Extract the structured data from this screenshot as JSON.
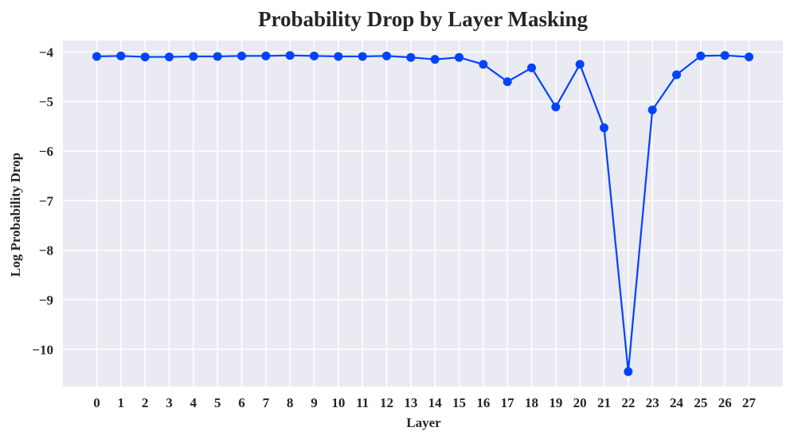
{
  "chart_data": {
    "type": "line",
    "title": "Probability Drop by Layer Masking",
    "xlabel": "Layer",
    "ylabel": "Log Probability Drop",
    "x": [
      0,
      1,
      2,
      3,
      4,
      5,
      6,
      7,
      8,
      9,
      10,
      11,
      12,
      13,
      14,
      15,
      16,
      17,
      18,
      19,
      20,
      21,
      22,
      23,
      24,
      25,
      26,
      27
    ],
    "series": [
      {
        "values": [
          -4.09,
          -4.08,
          -4.1,
          -4.1,
          -4.09,
          -4.09,
          -4.08,
          -4.08,
          -4.07,
          -4.08,
          -4.09,
          -4.09,
          -4.08,
          -4.11,
          -4.15,
          -4.11,
          -4.25,
          -4.6,
          -4.32,
          -5.11,
          -4.25,
          -5.53,
          -10.45,
          -5.17,
          -4.46,
          -4.08,
          -4.07,
          -4.1
        ]
      }
    ],
    "xticks": [
      "0",
      "1",
      "2",
      "3",
      "4",
      "5",
      "6",
      "7",
      "8",
      "9",
      "10",
      "11",
      "12",
      "13",
      "14",
      "15",
      "16",
      "17",
      "18",
      "19",
      "20",
      "21",
      "22",
      "23",
      "24",
      "25",
      "26",
      "27"
    ],
    "yticks": [
      "−4",
      "−5",
      "−6",
      "−7",
      "−8",
      "−9",
      "−10"
    ],
    "ytick_values": [
      -4,
      -5,
      -6,
      -7,
      -8,
      -9,
      -10
    ],
    "ylim": [
      -10.75,
      -3.77
    ],
    "xlim": [
      -1.4,
      28.4
    ],
    "grid": true,
    "colors": {
      "series": "#0043ff",
      "background": "#eaeaf2",
      "grid": "#ffffff"
    }
  }
}
